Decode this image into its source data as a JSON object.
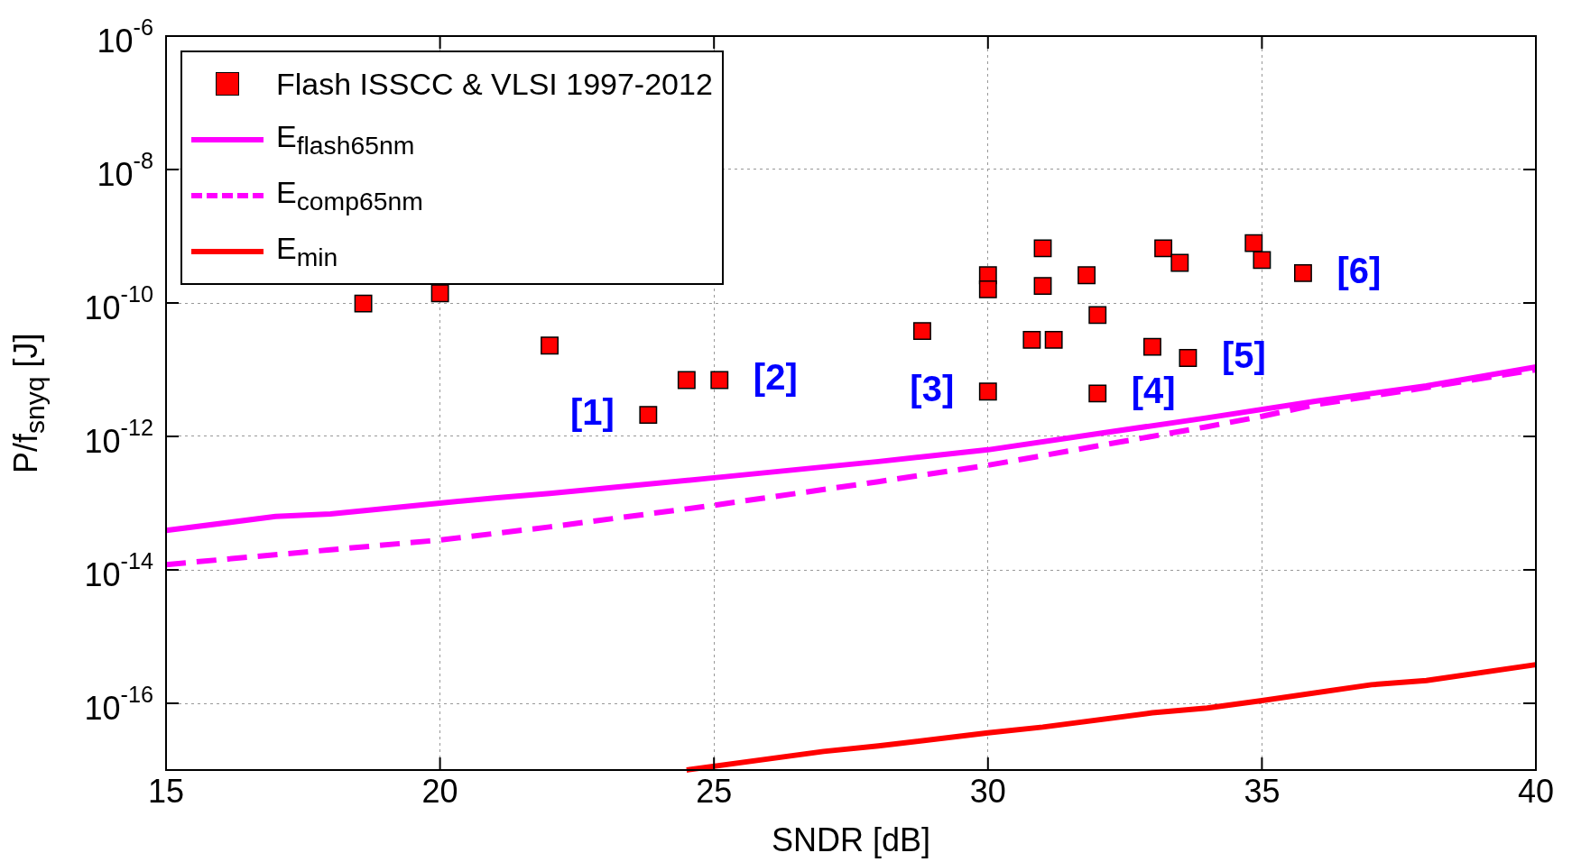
{
  "chart_data": {
    "type": "scatter",
    "xlabel": "SNDR [dB]",
    "ylabel": "P/f$_{snyq}$ [J]",
    "xlim": [
      15,
      40
    ],
    "xticks": [
      15,
      20,
      25,
      30,
      35,
      40
    ],
    "ylim": [
      1e-17,
      1e-06
    ],
    "yticks": [
      {
        "value": 1e-16,
        "label": "10$^{-16}$"
      },
      {
        "value": 1e-14,
        "label": "10$^{-14}$"
      },
      {
        "value": 1e-12,
        "label": "10$^{-12}$"
      },
      {
        "value": 1e-10,
        "label": "10$^{-10}$"
      },
      {
        "value": 1e-08,
        "label": "10$^{-8}$"
      },
      {
        "value": 1e-06,
        "label": "10$^{-6}$"
      }
    ],
    "log": "y",
    "grid": true,
    "legend": "top left",
    "series": [
      {
        "name": "Flash ISSCC & VLSI 1997-2012",
        "marker": "square",
        "color": "#ff0000",
        "x": [
          18.6,
          20.0,
          22.0,
          23.8,
          24.5,
          25.1,
          28.8,
          30.0,
          30.0,
          30.0,
          31.0,
          31.0,
          30.8,
          31.2,
          31.8,
          32.0,
          32.0,
          33.0,
          33.2,
          33.5,
          33.65,
          34.85,
          35.0,
          35.75
        ],
        "values": [
          9.8e-11,
          1.4e-10,
          2.3e-11,
          2.1e-12,
          7e-12,
          7e-12,
          3.8e-11,
          2.6e-10,
          1.6e-10,
          4.7e-12,
          6.6e-10,
          1.8e-10,
          2.8e-11,
          2.8e-11,
          2.6e-10,
          6.6e-11,
          4.4e-12,
          2.2e-11,
          6.6e-10,
          4e-10,
          1.5e-11,
          7.9e-10,
          4.4e-10,
          2.8e-10
        ]
      },
      {
        "name": "E$_{flash65nm}$",
        "type": "line",
        "marker": "none",
        "line_style": "solid",
        "color": "#ff00ff",
        "x": [
          15,
          17,
          18,
          20,
          21,
          22,
          25,
          28,
          30,
          32,
          34,
          36,
          38,
          40
        ],
        "values": [
          3.9e-14,
          6.3e-14,
          6.9e-14,
          1e-13,
          1.2e-13,
          1.4e-13,
          2.4e-13,
          4.2e-13,
          6.3e-13,
          1.1e-12,
          1.9e-12,
          3.4e-12,
          5.7e-12,
          1.1e-11
        ]
      },
      {
        "name": "E$_{comp65nm}$",
        "type": "line",
        "marker": "none",
        "line_style": "dashed",
        "color": "#ff00ff",
        "x": [
          15,
          18,
          20,
          22,
          25,
          28,
          30,
          32,
          34,
          35,
          36,
          38,
          40
        ],
        "values": [
          1.2e-14,
          2e-14,
          2.8e-14,
          4.4e-14,
          9.3e-14,
          2.1e-13,
          3.7e-13,
          7.2e-13,
          1.4e-12,
          2e-12,
          3e-12,
          5.4e-12,
          1e-11
        ]
      },
      {
        "name": "E$_{min}$",
        "type": "line",
        "marker": "none",
        "line_style": "solid",
        "color": "#ff0000",
        "x": [
          24.5,
          27,
          28,
          30,
          31,
          33,
          34,
          35,
          37,
          38,
          40
        ],
        "values": [
          1e-17,
          1.9e-17,
          2.3e-17,
          3.6e-17,
          4.4e-17,
          7.2e-17,
          8.5e-17,
          1.1e-16,
          1.9e-16,
          2.2e-16,
          3.8e-16
        ]
      }
    ],
    "annotations": [
      {
        "text": "[1]",
        "x": 23.8,
        "y": 2.1e-12
      },
      {
        "text": "[2]",
        "x": 25.1,
        "y": 7e-12
      },
      {
        "text": "[3]",
        "x": 30.0,
        "y": 4.7e-12
      },
      {
        "text": "[4]",
        "x": 32.0,
        "y": 4.4e-12
      },
      {
        "text": "[5]",
        "x": 33.65,
        "y": 1.5e-11
      },
      {
        "text": "[6]",
        "x": 35.75,
        "y": 2.8e-10
      }
    ]
  }
}
